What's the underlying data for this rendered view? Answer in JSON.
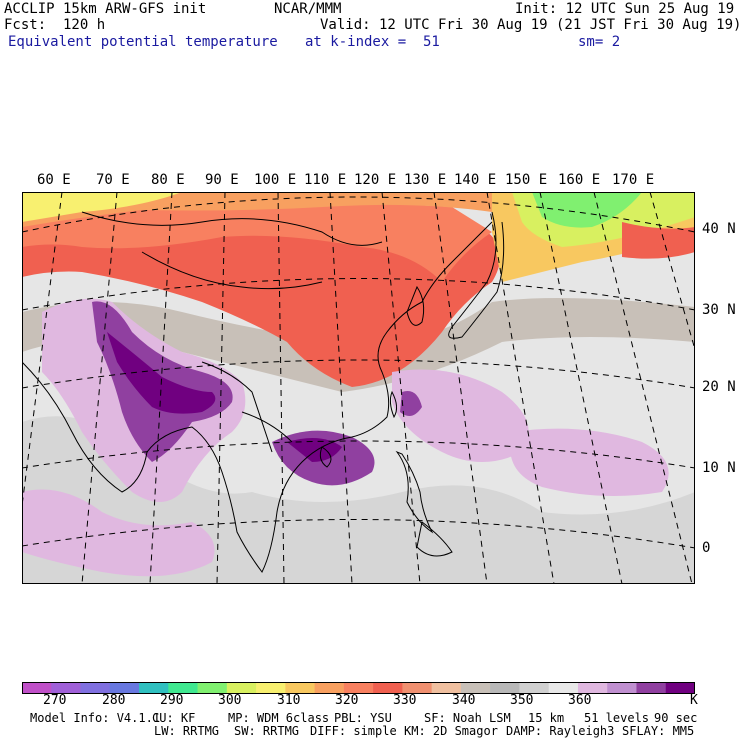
{
  "header": {
    "model": "ACCLIP 15km ARW-GFS init",
    "center": "NCAR/MMM",
    "init": "Init: 12 UTC Sun 25 Aug 19",
    "fcst": "Fcst:  120 h",
    "valid": "Valid: 12 UTC Fri 30 Aug 19 (21 JST Fri 30 Aug 19)",
    "field": "Equivalent potential temperature",
    "level": "at k-index =  51",
    "smooth": "sm= 2"
  },
  "map": {
    "lon_labels": [
      "60 E",
      "70 E",
      "80 E",
      "90 E",
      "100 E",
      "110 E",
      "120 E",
      "130 E",
      "140 E",
      "150 E",
      "160 E",
      "170 E"
    ],
    "lat_labels": [
      "40 N",
      "30 N",
      "20 N",
      "10 N",
      "0"
    ],
    "colors": {
      "land_line": "#000000",
      "grid_line": "#000000"
    }
  },
  "colorbar": {
    "labels": [
      "270",
      "280",
      "290",
      "300",
      "310",
      "320",
      "330",
      "340",
      "350",
      "360",
      "K"
    ],
    "colors": [
      "#c050c8",
      "#a060d8",
      "#8070e0",
      "#6878e0",
      "#30c0c0",
      "#40e890",
      "#80f070",
      "#d8f060",
      "#f8f070",
      "#f8c860",
      "#f8a060",
      "#f88060",
      "#f06050",
      "#f09070",
      "#f0c0a0",
      "#c8c0b8",
      "#b8b8b8",
      "#d0d0d0",
      "#e8e8e8",
      "#e0b8e0",
      "#c090d0",
      "#9040a0",
      "#700080"
    ]
  },
  "footer": {
    "line1": [
      "Model Info: V4.1.1",
      "CU: KF",
      "MP: WDM 6class",
      "PBL: YSU",
      "SF: Noah LSM",
      "15 km",
      "51 levels",
      "90 sec"
    ],
    "line2": [
      "LW: RRTMG",
      "SW: RRTMG",
      "DIFF: simple",
      "KM: 2D Smagor",
      "DAMP: Rayleigh3",
      "SFLAY: MM5"
    ]
  }
}
